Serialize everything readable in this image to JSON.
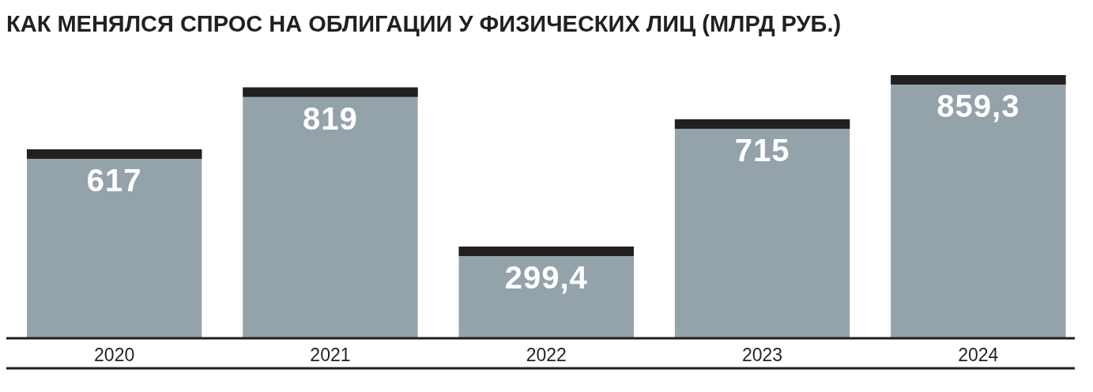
{
  "chart_data": {
    "type": "bar",
    "title": "КАК МЕНЯЛСЯ СПРОС НА ОБЛИГАЦИИ У ФИЗИЧЕСКИХ ЛИЦ (МЛРД РУБ.)",
    "categories": [
      "2020",
      "2021",
      "2022",
      "2023",
      "2024"
    ],
    "values": [
      617,
      819,
      299.4,
      715,
      859.3
    ],
    "value_labels": [
      "617",
      "819",
      "299,4",
      "715",
      "859,3"
    ],
    "color": "#94a3aa"
  }
}
